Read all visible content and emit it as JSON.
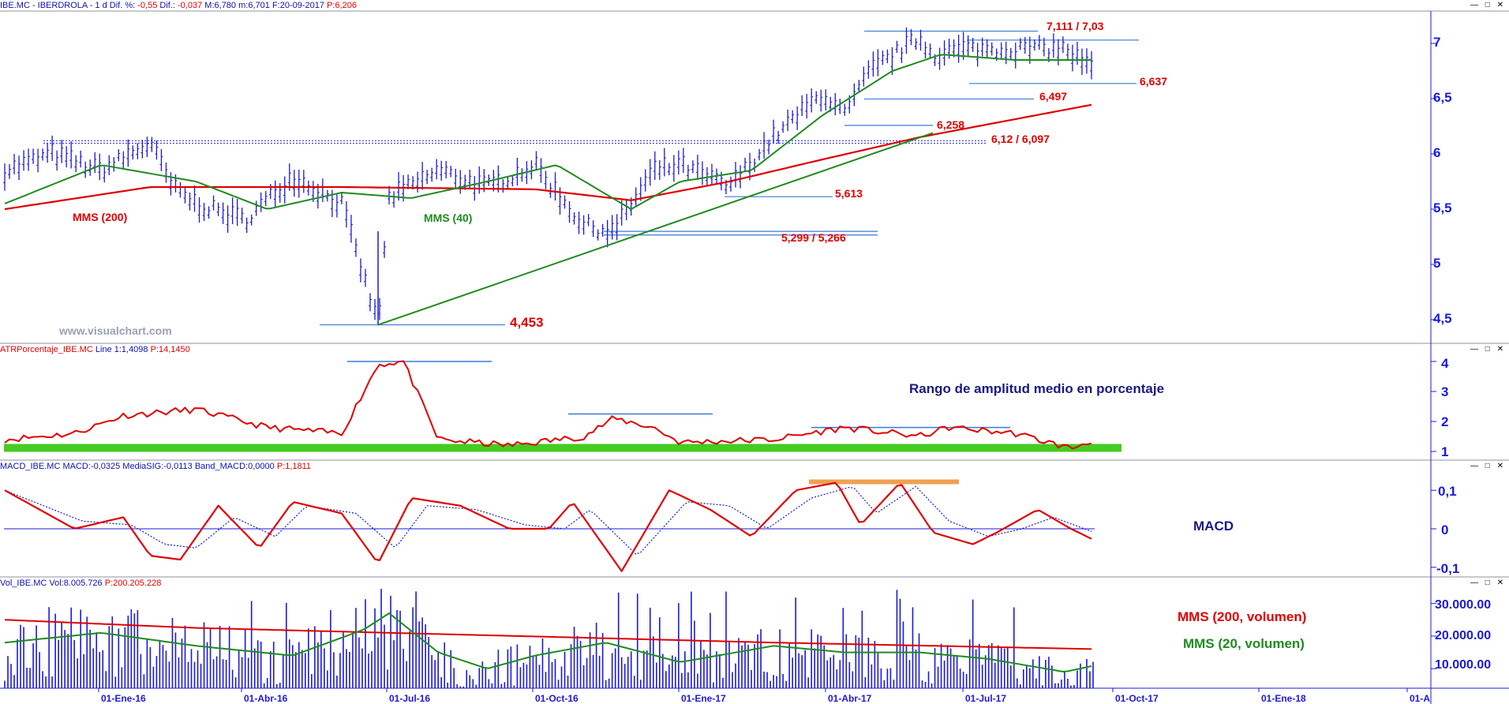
{
  "colors": {
    "price": "#1a1ad8",
    "mms40": "#1e8c1e",
    "mms200": "#e00000",
    "hline": "#3a7ad8",
    "label_red": "#e00000",
    "label_green": "#1e8c1e",
    "axis": "#1a1ad8",
    "atr_band": "#44cc22",
    "macd_highlight": "#f0a050",
    "note_navy": "#1a1a80"
  },
  "panels": {
    "price": {
      "header": {
        "symbol": "IBE.MC - IBERDROLA -",
        "period": "1 d",
        "dif_pct_label": "Dif. %:",
        "dif_pct_value": "-0,55",
        "dif_label": "Dif.:",
        "dif_value": "-0,037",
        "max_label": "M:",
        "max_value": "6,780",
        "min_label": "m:",
        "min_value": "6,701",
        "date_label": "F:",
        "date_value": "20-09-2017",
        "price_label": "P:",
        "price_value": "6,206"
      },
      "watermark": "www.visualchart.com",
      "window_controls": "— □ ✕"
    },
    "atr": {
      "header": {
        "label": "ATRPorcentaje_IBE.MC",
        "line_label": "Line 1:",
        "line_value": "1,4098",
        "p_label": "P:",
        "p_value": "14,1450"
      },
      "note": "Rango de amplitud medio en porcentaje",
      "window_controls": "— □ ✕"
    },
    "macd": {
      "header": {
        "label": "MACD_IBE.MC",
        "macd_label": "MACD:",
        "macd_value": "-0,0325",
        "sig_label": "MediaSIG:",
        "sig_value": "-0,0113",
        "band_label": "Band_MACD:",
        "band_value": "0,0000",
        "p_label": "P:",
        "p_value": "1,1811"
      },
      "note": "MACD",
      "window_controls": "— □ ✕"
    },
    "volume": {
      "header": {
        "label": "Vol_IBE.MC",
        "vol_label": "Vol:",
        "vol_value": "8.005.726",
        "p_label": "P:",
        "p_value": "200.205.228"
      },
      "note_200": "MMS (200, volumen)",
      "note_20": "MMS (20, volumen)",
      "window_controls": "— □ ✕"
    }
  },
  "chart_data": [
    {
      "type": "line",
      "title": "IBE.MC - IBERDROLA - 1 d",
      "y_axis_side": "right",
      "ylim": [
        4.3,
        7.3
      ],
      "y_ticks": [
        4.5,
        5,
        5.5,
        6,
        6.5,
        7
      ],
      "y_tick_labels": [
        "4,5",
        "5",
        "5,5",
        "6",
        "6,5",
        "7"
      ],
      "x_tick_labels": [
        "01-Ene-16",
        "01-Abr-16",
        "01-Jul-16",
        "01-Oct-16",
        "01-Ene-17",
        "01-Abr-17",
        "01-Jul-17",
        "01-Oct-17",
        "01-Ene-18",
        "01-A"
      ],
      "series": [
        {
          "name": "IBE.MC",
          "style": "ohlc-bars",
          "x": [
            "2015-11-01",
            "2015-12-01",
            "2016-01-01",
            "2016-02-01",
            "2016-02-15",
            "2016-03-01",
            "2016-04-01",
            "2016-05-01",
            "2016-06-01",
            "2016-06-24",
            "2016-07-01",
            "2016-08-01",
            "2016-09-01",
            "2016-10-01",
            "2016-11-01",
            "2016-11-20",
            "2016-12-15",
            "2017-01-01",
            "2017-02-01",
            "2017-03-01",
            "2017-04-01",
            "2017-04-15",
            "2017-05-01",
            "2017-06-01",
            "2017-06-10",
            "2017-07-01",
            "2017-08-01",
            "2017-09-01",
            "2017-09-20"
          ],
          "values": [
            5.85,
            6.0,
            5.85,
            6.1,
            5.7,
            5.55,
            5.4,
            5.8,
            5.55,
            4.45,
            5.6,
            5.85,
            5.7,
            5.9,
            5.35,
            5.3,
            5.85,
            5.9,
            5.7,
            6.15,
            6.55,
            6.35,
            6.75,
            7.05,
            6.9,
            6.95,
            6.95,
            6.95,
            6.75
          ]
        },
        {
          "name": "MMS (40)",
          "style": "line",
          "x": [
            "2015-11-01",
            "2016-01-01",
            "2016-03-01",
            "2016-04-15",
            "2016-06-01",
            "2016-07-15",
            "2016-09-01",
            "2016-10-15",
            "2016-12-01",
            "2017-01-01",
            "2017-02-15",
            "2017-04-01",
            "2017-05-15",
            "2017-06-15",
            "2017-08-01",
            "2017-09-20"
          ],
          "values": [
            5.55,
            5.9,
            5.75,
            5.5,
            5.65,
            5.6,
            5.75,
            5.9,
            5.5,
            5.75,
            5.85,
            6.35,
            6.75,
            6.9,
            6.85,
            6.85
          ]
        },
        {
          "name": "MMS (200)",
          "style": "line",
          "x": [
            "2015-11-01",
            "2016-02-01",
            "2016-06-01",
            "2016-10-01",
            "2016-12-01",
            "2017-02-01",
            "2017-04-01",
            "2017-06-01",
            "2017-09-20"
          ],
          "values": [
            5.5,
            5.7,
            5.7,
            5.68,
            5.58,
            5.75,
            5.95,
            6.15,
            6.45
          ]
        }
      ],
      "levels": [
        "4,453",
        "5,299 / 5,266",
        "5,613",
        "6,258",
        "6,12 / 6,097",
        "6,497",
        "6,637",
        "7,111 / 7,03"
      ],
      "annotations": [
        "MMS (200)",
        "MMS (40)"
      ]
    },
    {
      "type": "line",
      "title": "ATRPorcentaje_IBE.MC",
      "ylim": [
        0.8,
        4.2
      ],
      "y_ticks": [
        1,
        2,
        3,
        4
      ],
      "y_tick_labels": [
        "1",
        "2",
        "3",
        "4"
      ],
      "series": [
        {
          "name": "Line 1",
          "x": [
            "2015-11-01",
            "2015-12-15",
            "2016-01-15",
            "2016-03-01",
            "2016-04-15",
            "2016-06-01",
            "2016-06-24",
            "2016-07-10",
            "2016-08-01",
            "2016-09-15",
            "2016-11-01",
            "2016-11-20",
            "2016-12-15",
            "2017-01-01",
            "2017-03-01",
            "2017-04-15",
            "2017-06-01",
            "2017-06-20",
            "2017-08-01",
            "2017-09-05",
            "2017-09-20"
          ],
          "values": [
            1.4,
            1.6,
            2.2,
            2.4,
            1.8,
            1.6,
            3.9,
            4.0,
            1.4,
            1.2,
            1.5,
            2.1,
            1.8,
            1.3,
            1.4,
            1.8,
            1.5,
            1.8,
            1.6,
            1.1,
            1.4
          ]
        }
      ]
    },
    {
      "type": "line",
      "title": "MACD_IBE.MC",
      "ylim": [
        -0.125,
        0.135
      ],
      "y_ticks": [
        -0.1,
        0,
        0.1
      ],
      "y_tick_labels": [
        "-0,1",
        "0",
        "0,1"
      ],
      "series": [
        {
          "name": "MACD",
          "x": [
            "2015-11-01",
            "2015-12-15",
            "2016-01-15",
            "2016-02-01",
            "2016-02-20",
            "2016-03-15",
            "2016-04-10",
            "2016-05-01",
            "2016-06-01",
            "2016-06-24",
            "2016-07-15",
            "2016-08-15",
            "2016-09-15",
            "2016-10-10",
            "2016-10-25",
            "2016-11-25",
            "2016-12-25",
            "2017-01-20",
            "2017-02-15",
            "2017-03-15",
            "2017-04-10",
            "2017-04-25",
            "2017-05-20",
            "2017-06-10",
            "2017-07-05",
            "2017-07-20",
            "2017-08-15",
            "2017-09-05",
            "2017-09-20"
          ],
          "values": [
            0.1,
            0.0,
            0.03,
            -0.07,
            -0.08,
            0.06,
            -0.05,
            0.07,
            0.04,
            -0.09,
            0.08,
            0.06,
            0.0,
            0.0,
            0.07,
            -0.11,
            0.1,
            0.05,
            -0.02,
            0.1,
            0.12,
            0.01,
            0.12,
            -0.01,
            -0.04,
            -0.01,
            0.05,
            0.0,
            -0.03
          ]
        },
        {
          "name": "MediaSIG",
          "x": [
            "2015-11-01",
            "2015-12-20",
            "2016-01-20",
            "2016-02-10",
            "2016-03-01",
            "2016-03-25",
            "2016-04-20",
            "2016-05-10",
            "2016-06-10",
            "2016-07-05",
            "2016-07-25",
            "2016-08-25",
            "2016-09-25",
            "2016-10-20",
            "2016-11-05",
            "2016-12-05",
            "2017-01-05",
            "2017-02-01",
            "2017-02-25",
            "2017-03-25",
            "2017-04-20",
            "2017-05-05",
            "2017-05-30",
            "2017-06-20",
            "2017-07-15",
            "2017-08-05",
            "2017-08-25",
            "2017-09-20"
          ],
          "values": [
            0.1,
            0.02,
            0.01,
            -0.04,
            -0.05,
            0.03,
            -0.02,
            0.06,
            0.04,
            -0.05,
            0.06,
            0.05,
            0.01,
            0.0,
            0.05,
            -0.07,
            0.07,
            0.06,
            0.0,
            0.08,
            0.11,
            0.04,
            0.11,
            0.02,
            -0.02,
            0.0,
            0.03,
            -0.01
          ]
        }
      ]
    },
    {
      "type": "bar",
      "title": "Vol_IBE.MC",
      "ylim": [
        4000000,
        35000000
      ],
      "y_ticks": [
        10000000,
        20000000,
        30000000
      ],
      "y_tick_labels": [
        "10.000.00",
        "20.000.00",
        "30.000.00"
      ],
      "series": [
        {
          "name": "MMS (200, volumen)",
          "x": [
            "2015-11-01",
            "2016-03-01",
            "2016-07-01",
            "2016-11-01",
            "2017-03-01",
            "2017-09-20"
          ],
          "values": [
            25000000,
            22500000,
            21000000,
            19500000,
            18000000,
            16000000
          ]
        },
        {
          "name": "MMS (20, volumen)",
          "x": [
            "2015-11-01",
            "2016-01-01",
            "2016-03-01",
            "2016-05-01",
            "2016-06-15",
            "2016-07-01",
            "2016-08-01",
            "2016-09-01",
            "2016-10-01",
            "2016-11-15",
            "2017-01-01",
            "2017-03-01",
            "2017-04-15",
            "2017-06-01",
            "2017-07-15",
            "2017-09-01",
            "2017-09-20"
          ],
          "values": [
            18000000,
            21000000,
            17000000,
            14000000,
            22000000,
            27000000,
            15000000,
            10000000,
            14000000,
            18000000,
            12000000,
            17000000,
            15000000,
            15000000,
            13000000,
            9000000,
            11000000
          ]
        }
      ]
    }
  ]
}
